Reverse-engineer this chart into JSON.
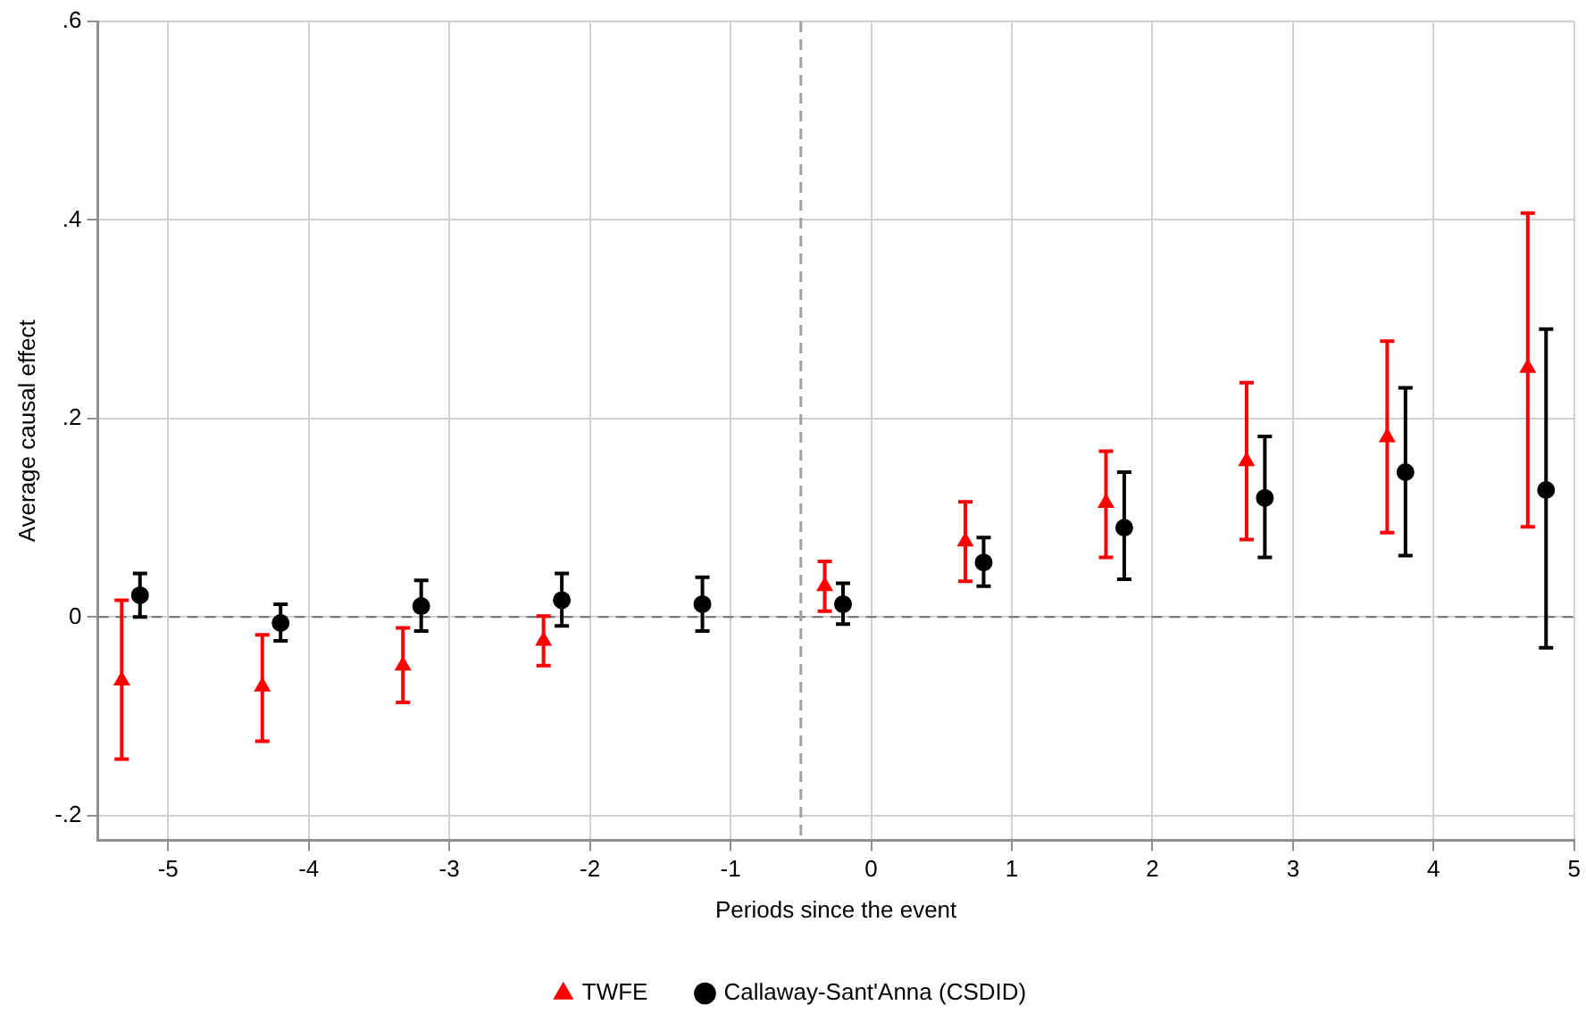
{
  "chart_data": {
    "type": "scatter",
    "xlabel": "Periods since the event",
    "ylabel": "Average causal effect",
    "xlim": [
      -5.5,
      5
    ],
    "xticks": [
      -5,
      -4,
      -3,
      -2,
      -1,
      0,
      1,
      2,
      3,
      4,
      5
    ],
    "ylim": [
      -0.225,
      0.6
    ],
    "yticks": [
      {
        "value": -0.2,
        "label": "-.2"
      },
      {
        "value": 0,
        "label": "0"
      },
      {
        "value": 0.2,
        "label": ".2"
      },
      {
        "value": 0.4,
        "label": ".4"
      },
      {
        "value": 0.6,
        "label": ".6"
      }
    ],
    "grid": true,
    "legend": "bottom",
    "ref_lines": [
      {
        "axis": "y",
        "value": 0,
        "color": "#707070",
        "line_style": "dashed"
      },
      {
        "axis": "x",
        "value": -0.5,
        "color": "#a0a0a0",
        "line_style": "dashed"
      }
    ],
    "series": [
      {
        "name": "TWFE",
        "color": "#ff0000",
        "marker": "triangle",
        "x": [
          -5.33,
          -4.33,
          -3.33,
          -2.33,
          -0.33,
          0.67,
          1.67,
          2.67,
          3.67,
          4.67
        ],
        "values": [
          -0.064,
          -0.07,
          -0.049,
          -0.024,
          0.031,
          0.076,
          0.115,
          0.157,
          0.181,
          0.251
        ],
        "errors": [
          [
            -0.143,
            0.017
          ],
          [
            -0.125,
            -0.018
          ],
          [
            -0.086,
            -0.011
          ],
          [
            -0.049,
            0.001
          ],
          [
            0.006,
            0.056
          ],
          [
            0.036,
            0.116
          ],
          [
            0.06,
            0.167
          ],
          [
            0.078,
            0.236
          ],
          [
            0.085,
            0.278
          ],
          [
            0.091,
            0.407
          ]
        ]
      },
      {
        "name": "Callaway-Sant'Anna (CSDID)",
        "color": "#000000",
        "marker": "circle",
        "x": [
          -5.2,
          -4.2,
          -3.2,
          -2.2,
          -1.2,
          -0.2,
          0.8,
          1.8,
          2.8,
          3.8,
          4.8
        ],
        "values": [
          0.022,
          -0.006,
          0.011,
          0.017,
          0.013,
          0.013,
          0.055,
          0.09,
          0.12,
          0.146,
          0.128
        ],
        "errors": [
          [
            0,
            0.044
          ],
          [
            -0.024,
            0.013
          ],
          [
            -0.014,
            0.037
          ],
          [
            -0.009,
            0.044
          ],
          [
            -0.014,
            0.04
          ],
          [
            -0.007,
            0.034
          ],
          [
            0.031,
            0.08
          ],
          [
            0.038,
            0.146
          ],
          [
            0.06,
            0.182
          ],
          [
            0.062,
            0.231
          ],
          [
            -0.031,
            0.29
          ]
        ]
      }
    ]
  }
}
